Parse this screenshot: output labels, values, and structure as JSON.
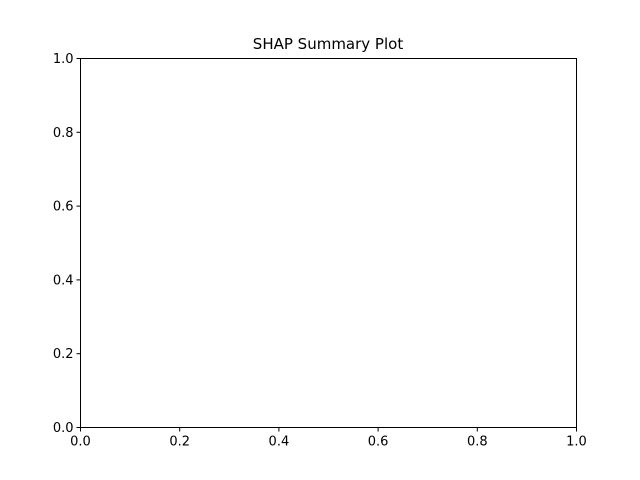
{
  "chart_data": {
    "type": "scatter",
    "title": "SHAP Summary Plot",
    "xlabel": "",
    "ylabel": "",
    "xlim": [
      0.0,
      1.0
    ],
    "ylim": [
      0.0,
      1.0
    ],
    "x_ticks": [
      "0.0",
      "0.2",
      "0.4",
      "0.6",
      "0.8",
      "1.0"
    ],
    "y_ticks": [
      "0.0",
      "0.2",
      "0.4",
      "0.6",
      "0.8",
      "1.0"
    ],
    "series": [],
    "grid": false,
    "legend": "none"
  }
}
